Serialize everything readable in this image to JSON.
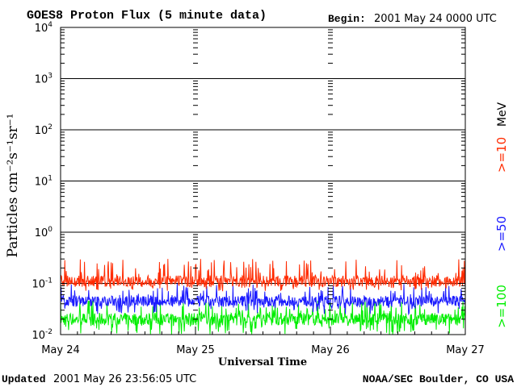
{
  "header": {
    "title": "GOES8 Proton Flux (5 minute data)",
    "begin_label": "Begin:",
    "begin_value": "2001 May 24 0000 UTC"
  },
  "footer": {
    "updated_label": "Updated",
    "updated_value": "2001 May 26 23:56:05 UTC",
    "credit": "NOAA/SEC Boulder, CO USA"
  },
  "chart_data": {
    "type": "line",
    "title": "GOES8 Proton Flux (5 minute data)",
    "xlabel": "Universal Time",
    "ylabel": "Particles cm⁻²s⁻¹sr⁻¹",
    "y_scale": "log",
    "ylim": [
      0.01,
      10000
    ],
    "xlim_days": [
      0,
      3
    ],
    "x_ticks": [
      {
        "day": 0,
        "label": "May 24"
      },
      {
        "day": 1,
        "label": "May 25"
      },
      {
        "day": 2,
        "label": "May 26"
      },
      {
        "day": 3,
        "label": "May 27"
      }
    ],
    "y_ticks": [
      {
        "value": 0.01,
        "base": "10",
        "exp": "-2"
      },
      {
        "value": 0.1,
        "base": "10",
        "exp": "-1"
      },
      {
        "value": 1,
        "base": "10",
        "exp": "0"
      },
      {
        "value": 10,
        "base": "10",
        "exp": "1"
      },
      {
        "value": 100,
        "base": "10",
        "exp": "2"
      },
      {
        "value": 1000,
        "base": "10",
        "exp": "3"
      },
      {
        "value": 10000,
        "base": "10",
        "exp": "4"
      }
    ],
    "grid": true,
    "legend": {
      "placement": "right",
      "unit": "MeV"
    },
    "series": [
      {
        "name": ">=10",
        "color": "#ff2a00",
        "level_range": [
          0.07,
          0.3
        ],
        "typical": 0.11
      },
      {
        "name": ">=50",
        "color": "#1a1aff",
        "level_range": [
          0.025,
          0.1
        ],
        "typical": 0.045
      },
      {
        "name": ">=100",
        "color": "#00ee00",
        "level_range": [
          0.01,
          0.05
        ],
        "typical": 0.02
      }
    ]
  }
}
